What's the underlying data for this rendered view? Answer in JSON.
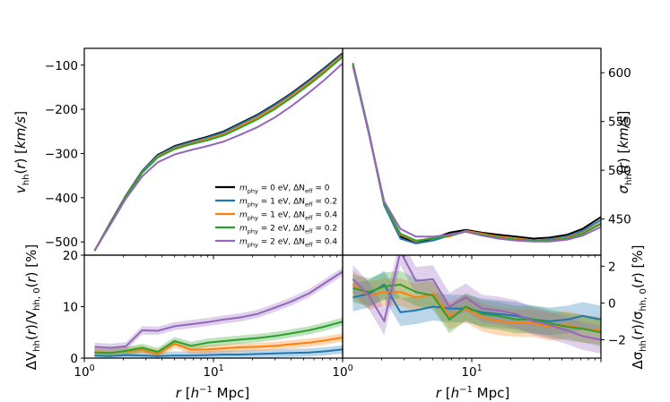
{
  "chart_data": [
    {
      "panel": "top-left",
      "type": "line",
      "ylabel": "v_hh(r) [km/s]",
      "xscale": "log",
      "xlim": [
        1,
        100
      ],
      "ylim": [
        -530,
        -62
      ],
      "yticks": [
        -500,
        -400,
        -300,
        -200,
        -100
      ],
      "yticklabels": [
        "−500",
        "−400",
        "−300",
        "−200",
        "−100"
      ],
      "x": [
        1.2,
        1.6,
        2.1,
        2.8,
        3.7,
        5.0,
        6.7,
        9.0,
        12.0,
        16.0,
        22.0,
        30.0,
        40.0,
        55.0,
        72.0,
        100.0
      ],
      "series": [
        {
          "name": "m_phy = 0 eV, ΔN_eff = 0",
          "color": "#000000",
          "values": [
            -520,
            -455,
            -395,
            -340,
            -303,
            -283,
            -272,
            -262,
            -250,
            -232,
            -212,
            -188,
            -164,
            -134,
            -107,
            -73
          ]
        },
        {
          "name": "m_phy = 1 eV, ΔN_eff = 0.2",
          "color": "#1f77b4",
          "values": [
            -520,
            -456,
            -396,
            -341,
            -305,
            -285,
            -274,
            -264,
            -252,
            -234,
            -214,
            -190,
            -166,
            -136,
            -109,
            -75
          ]
        },
        {
          "name": "m_phy = 1 eV, ΔN_eff = 0.4",
          "color": "#ff7f0e",
          "values": [
            -520,
            -457,
            -397,
            -343,
            -307,
            -288,
            -277,
            -267,
            -256,
            -238,
            -218,
            -195,
            -170,
            -140,
            -113,
            -78
          ]
        },
        {
          "name": "m_phy = 2 eV, ΔN_eff = 0.2",
          "color": "#2ca02c",
          "values": [
            -520,
            -457,
            -398,
            -344,
            -309,
            -290,
            -279,
            -270,
            -259,
            -242,
            -222,
            -199,
            -174,
            -144,
            -117,
            -81
          ]
        },
        {
          "name": "m_phy = 2 eV, ΔN_eff = 0.4",
          "color": "#9467bd",
          "values": [
            -520,
            -460,
            -402,
            -352,
            -320,
            -302,
            -292,
            -283,
            -273,
            -258,
            -240,
            -218,
            -193,
            -162,
            -134,
            -96
          ]
        }
      ]
    },
    {
      "panel": "top-right",
      "type": "line",
      "ylabel": "σ_hh(r) [km/s]",
      "xscale": "log",
      "xlim": [
        1,
        100
      ],
      "ylim": [
        413,
        625
      ],
      "yticks": [
        450,
        500,
        550,
        600
      ],
      "yticklabels": [
        "450",
        "500",
        "550",
        "600"
      ],
      "x": [
        1.2,
        1.6,
        2.1,
        2.8,
        3.7,
        5.0,
        6.7,
        9.0,
        12.0,
        16.0,
        22.0,
        30.0,
        40.0,
        55.0,
        72.0,
        100.0
      ],
      "series": [
        {
          "name": "m_phy = 0 eV, ΔN_eff = 0",
          "color": "#000000",
          "values": [
            608,
            538,
            465,
            432,
            426,
            430,
            436,
            439,
            436,
            434,
            432,
            430,
            431,
            434,
            440,
            452
          ]
        },
        {
          "name": "m_phy = 1 eV, ΔN_eff = 0.2",
          "color": "#1f77b4",
          "values": [
            608,
            537,
            464,
            430,
            425,
            428,
            433,
            438,
            435,
            432,
            430,
            428,
            429,
            432,
            438,
            449
          ]
        },
        {
          "name": "m_phy = 1 eV, ΔN_eff = 0.4",
          "color": "#ff7f0e",
          "values": [
            608,
            537,
            466,
            434,
            427,
            431,
            432,
            438,
            435,
            432,
            430,
            428,
            428,
            431,
            436,
            446
          ]
        },
        {
          "name": "m_phy = 2 eV, ΔN_eff = 0.2",
          "color": "#2ca02c",
          "values": [
            610,
            539,
            466,
            435,
            428,
            430,
            433,
            437,
            434,
            431,
            429,
            428,
            428,
            430,
            435,
            445
          ]
        },
        {
          "name": "m_phy = 2 eV, ΔN_eff = 0.4",
          "color": "#9467bd",
          "values": [
            607,
            537,
            468,
            440,
            432,
            432,
            434,
            437,
            433,
            430,
            428,
            427,
            427,
            429,
            433,
            442
          ]
        }
      ]
    },
    {
      "panel": "bottom-left",
      "type": "area",
      "xlabel": "r [h⁻¹ Mpc]",
      "ylabel": "ΔV_hh(r)/V_hh,0(r) [%]",
      "xscale": "log",
      "xlim": [
        1,
        100
      ],
      "ylim": [
        0,
        20
      ],
      "xticks": [
        1,
        10,
        100
      ],
      "xticklabels": [
        "10",
        "10",
        "10"
      ],
      "xtick_exponents": [
        "0",
        "1",
        "0"
      ],
      "yticks": [
        0,
        10,
        20
      ],
      "yticklabels": [
        "0",
        "10",
        "20"
      ],
      "x": [
        1.2,
        1.6,
        2.1,
        2.8,
        3.7,
        5.0,
        6.7,
        9.0,
        12.0,
        16.0,
        22.0,
        30.0,
        40.0,
        55.0,
        72.0,
        100.0
      ],
      "band_halfwidth": 0.8,
      "series": [
        {
          "name": "m_phy = 1 eV, ΔN_eff = 0.2",
          "color": "#1f77b4",
          "values": [
            0.5,
            0.4,
            0.6,
            0.5,
            0.4,
            0.5,
            0.5,
            0.6,
            0.7,
            0.7,
            0.8,
            0.9,
            1.0,
            1.1,
            1.3,
            1.7
          ]
        },
        {
          "name": "m_phy = 1 eV, ΔN_eff = 0.4",
          "color": "#ff7f0e",
          "values": [
            1.2,
            1.0,
            1.3,
            1.6,
            0.8,
            2.8,
            1.6,
            1.7,
            1.9,
            2.1,
            2.2,
            2.4,
            2.7,
            3.0,
            3.4,
            4.0
          ]
        },
        {
          "name": "m_phy = 2 eV, ΔN_eff = 0.2",
          "color": "#2ca02c",
          "values": [
            1.1,
            1.0,
            1.4,
            2.0,
            1.2,
            3.3,
            2.4,
            3.0,
            3.3,
            3.6,
            3.9,
            4.3,
            4.8,
            5.4,
            6.1,
            7.1
          ]
        },
        {
          "name": "m_phy = 2 eV, ΔN_eff = 0.4",
          "color": "#9467bd",
          "values": [
            2.2,
            2.0,
            2.3,
            5.4,
            5.3,
            6.2,
            6.6,
            7.0,
            7.5,
            7.9,
            8.6,
            9.8,
            11.0,
            12.6,
            14.5,
            16.8
          ]
        }
      ]
    },
    {
      "panel": "bottom-right",
      "type": "area",
      "xlabel": "r [h⁻¹ Mpc]",
      "ylabel": "Δσ_hh(r)/σ_hh,0(r) [%]",
      "xscale": "log",
      "xlim": [
        1,
        100
      ],
      "ylim": [
        -3.0,
        2.6
      ],
      "xticks": [
        10
      ],
      "xticklabels": [
        "10"
      ],
      "xtick_exponents": [
        "1"
      ],
      "yticks": [
        -2,
        0,
        2
      ],
      "yticklabels": [
        "−2",
        "0",
        "2"
      ],
      "x": [
        1.2,
        1.6,
        2.1,
        2.8,
        3.7,
        5.0,
        6.7,
        9.0,
        12.0,
        16.0,
        22.0,
        30.0,
        40.0,
        55.0,
        72.0,
        100.0
      ],
      "band_halfwidth": 0.75,
      "series": [
        {
          "name": "m_phy = 1 eV, ΔN_eff = 0.2",
          "color": "#1f77b4",
          "values": [
            0.3,
            0.5,
            1.0,
            -0.5,
            -0.4,
            -0.2,
            -0.3,
            -0.3,
            -0.5,
            -0.6,
            -0.7,
            -0.9,
            -1.0,
            -0.9,
            -0.7,
            -0.9
          ]
        },
        {
          "name": "m_phy = 1 eV, ΔN_eff = 0.4",
          "color": "#ff7f0e",
          "values": [
            1.0,
            0.4,
            0.6,
            0.6,
            0.3,
            0.5,
            -0.7,
            -0.3,
            -0.8,
            -1.0,
            -1.1,
            -1.1,
            -1.3,
            -1.2,
            -1.4,
            -1.5
          ]
        },
        {
          "name": "m_phy = 2 eV, ΔN_eff = 0.2",
          "color": "#2ca02c",
          "values": [
            0.8,
            0.6,
            0.9,
            1.0,
            0.6,
            0.4,
            -0.9,
            -0.2,
            -0.6,
            -0.7,
            -0.9,
            -0.9,
            -1.1,
            -1.3,
            -1.4,
            -1.6
          ]
        },
        {
          "name": "m_phy = 2 eV, ΔN_eff = 0.4",
          "color": "#9467bd",
          "values": [
            1.3,
            0.4,
            -1.0,
            2.8,
            1.2,
            1.3,
            -0.2,
            0.3,
            -0.3,
            -0.4,
            -0.6,
            -1.0,
            -1.2,
            -1.5,
            -1.8,
            -2.0
          ]
        }
      ]
    }
  ],
  "legend": {
    "placement": "lower-right of top-left panel",
    "entries": [
      {
        "mass": "0 eV",
        "neff": "0",
        "color": "#000000"
      },
      {
        "mass": "1 eV",
        "neff": "0.2",
        "color": "#1f77b4"
      },
      {
        "mass": "1 eV",
        "neff": "0.4",
        "color": "#ff7f0e"
      },
      {
        "mass": "2 eV",
        "neff": "0.2",
        "color": "#2ca02c"
      },
      {
        "mass": "2 eV",
        "neff": "0.4",
        "color": "#9467bd"
      }
    ]
  }
}
